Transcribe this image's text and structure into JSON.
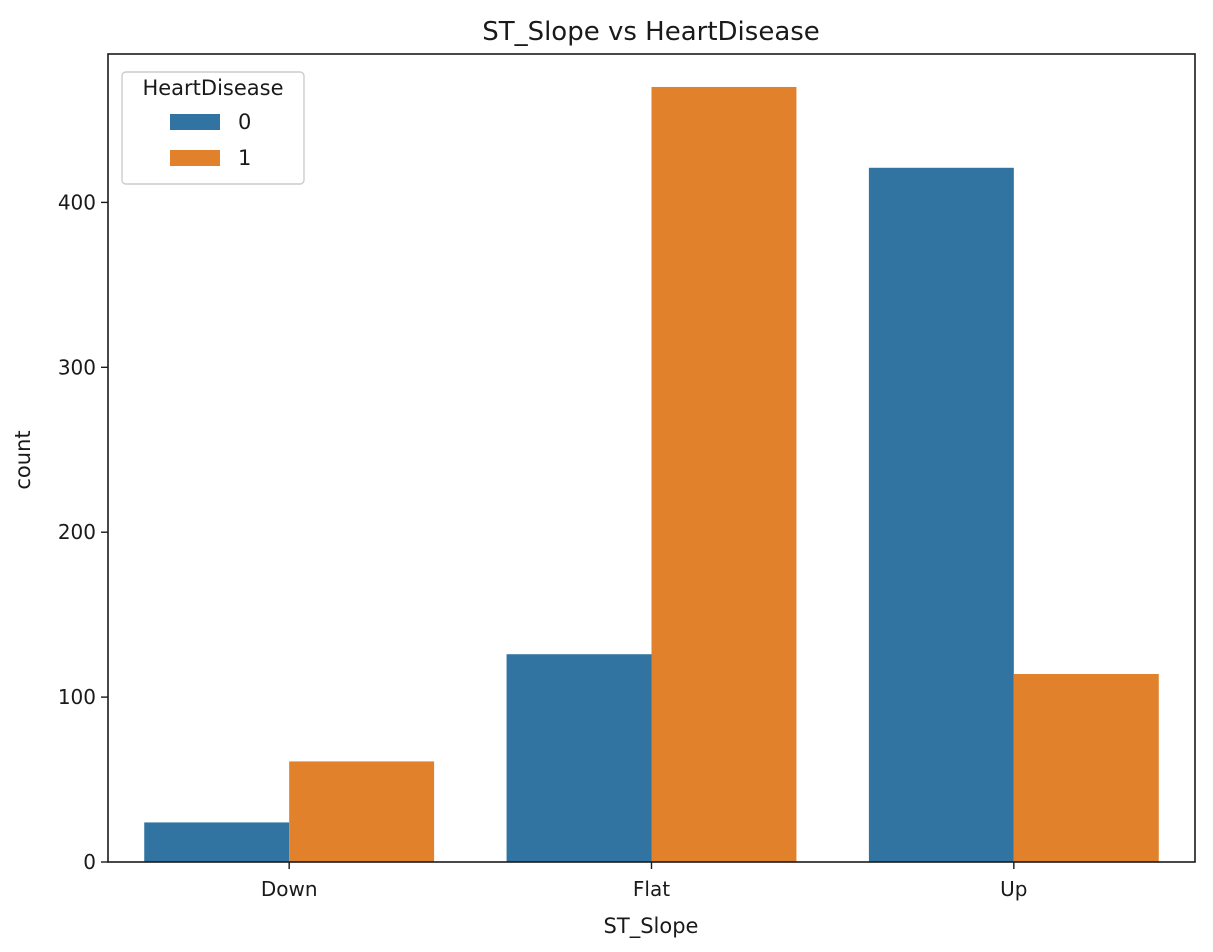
{
  "chart_data": {
    "type": "bar",
    "title": "ST_Slope vs HeartDisease",
    "xlabel": "ST_Slope",
    "ylabel": "count",
    "categories": [
      "Down",
      "Flat",
      "Up"
    ],
    "ylim": [
      0,
      490
    ],
    "yticks": [
      0,
      100,
      200,
      300,
      400
    ],
    "grid": false,
    "legend": {
      "title": "HeartDisease",
      "placement": "top-left"
    },
    "series": [
      {
        "name": "0",
        "color": "#3274a1",
        "values": [
          24,
          126,
          421
        ]
      },
      {
        "name": "1",
        "color": "#e1812c",
        "values": [
          61,
          470,
          114
        ]
      }
    ]
  }
}
